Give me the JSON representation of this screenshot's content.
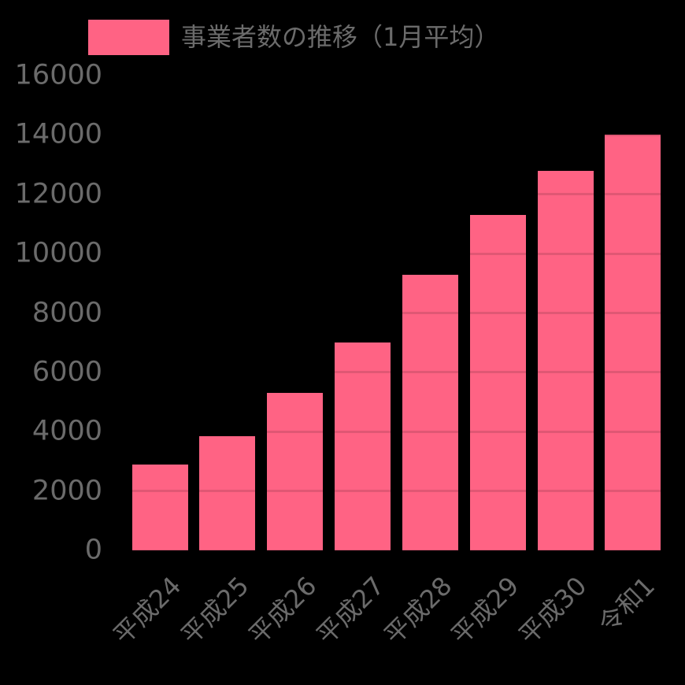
{
  "background_color": "#000000",
  "legend": {
    "label": "事業者数の推移（1月平均）",
    "swatch_color": "#FF6384",
    "text_color": "#6B6B6B"
  },
  "chart_data": {
    "type": "bar",
    "title": "",
    "legend_position": "top",
    "grid": true,
    "categories": [
      "平成24",
      "平成25",
      "平成26",
      "平成27",
      "平成28",
      "平成29",
      "平成30",
      "令和1"
    ],
    "series": [
      {
        "name": "事業者数の推移（1月平均）",
        "values": [
          2900,
          3850,
          5300,
          7000,
          9300,
          11300,
          12800,
          14000
        ]
      }
    ],
    "xlabel": "",
    "ylabel": "",
    "ylim": [
      0,
      16000
    ],
    "yticks": [
      0,
      2000,
      4000,
      6000,
      8000,
      10000,
      12000,
      14000,
      16000
    ],
    "colors": {
      "bar": "#FF6384",
      "tick_text": "#6B6B6B",
      "gridline_overlay": "rgba(0,0,0,0.12)",
      "background": "#000000"
    }
  }
}
